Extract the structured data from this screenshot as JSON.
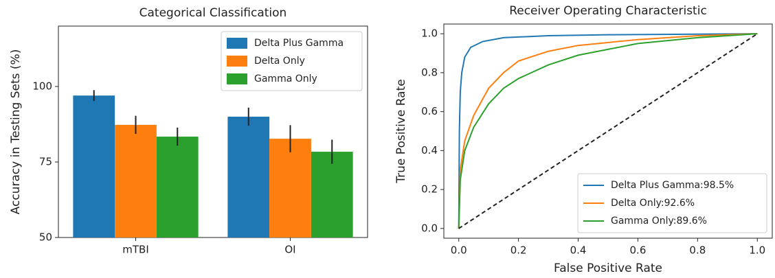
{
  "chart_data": [
    {
      "type": "bar",
      "title": "Categorical Classification",
      "ylabel": "Accuracy in Testing Sets (%)",
      "categories": [
        "mTBI",
        "OI"
      ],
      "series": [
        {
          "name": "Delta Plus Gamma",
          "color": "#1f77b4",
          "values": [
            97,
            90
          ],
          "errors": [
            1.8,
            3
          ]
        },
        {
          "name": "Delta Only",
          "color": "#ff7f0e",
          "values": [
            87.3,
            82.7
          ],
          "errors": [
            3,
            4.5
          ]
        },
        {
          "name": "Gamma Only",
          "color": "#2ca02c",
          "values": [
            83.4,
            78.4
          ],
          "errors": [
            3,
            4
          ]
        }
      ],
      "ylim": [
        50,
        120
      ],
      "yticks": [
        50,
        75,
        100
      ],
      "error_color": "#222",
      "legend": "upper right"
    },
    {
      "type": "line",
      "title": "Receiver Operating Characteristic",
      "xlabel": "False Positive Rate",
      "ylabel": "True Positive Rate",
      "series": [
        {
          "name": "Delta Plus Gamma:98.5%",
          "color": "#1f77b4",
          "x": [
            0,
            0.002,
            0.005,
            0.01,
            0.02,
            0.04,
            0.08,
            0.15,
            0.3,
            0.5,
            1
          ],
          "values": [
            0,
            0.5,
            0.7,
            0.8,
            0.88,
            0.93,
            0.96,
            0.98,
            0.99,
            0.995,
            1
          ]
        },
        {
          "name": "Delta Only:92.6%",
          "color": "#ff7f0e",
          "x": [
            0,
            0.005,
            0.02,
            0.05,
            0.1,
            0.15,
            0.2,
            0.3,
            0.4,
            0.6,
            0.8,
            1
          ],
          "values": [
            0,
            0.3,
            0.45,
            0.58,
            0.72,
            0.8,
            0.86,
            0.91,
            0.94,
            0.97,
            0.99,
            1
          ]
        },
        {
          "name": "Gamma Only:89.6%",
          "color": "#2ca02c",
          "x": [
            0,
            0.005,
            0.02,
            0.05,
            0.1,
            0.15,
            0.2,
            0.3,
            0.4,
            0.5,
            0.6,
            0.8,
            1
          ],
          "values": [
            0,
            0.25,
            0.4,
            0.52,
            0.64,
            0.72,
            0.77,
            0.84,
            0.89,
            0.92,
            0.95,
            0.98,
            1
          ]
        }
      ],
      "reference_line": {
        "x": [
          0,
          1
        ],
        "values": [
          0,
          1
        ],
        "color": "#222",
        "dashed": true
      },
      "xlim": [
        -0.05,
        1.05
      ],
      "ylim": [
        -0.05,
        1.05
      ],
      "xticks": [
        {
          "value": 0,
          "label": "0.0"
        },
        0.2,
        0.4,
        0.6,
        0.8,
        {
          "value": 1,
          "label": "1.0"
        }
      ],
      "yticks": [
        {
          "value": 0,
          "label": "0.0"
        },
        0.2,
        0.4,
        0.6,
        0.8,
        {
          "value": 1,
          "label": "1.0"
        }
      ],
      "legend": "lower right"
    }
  ]
}
